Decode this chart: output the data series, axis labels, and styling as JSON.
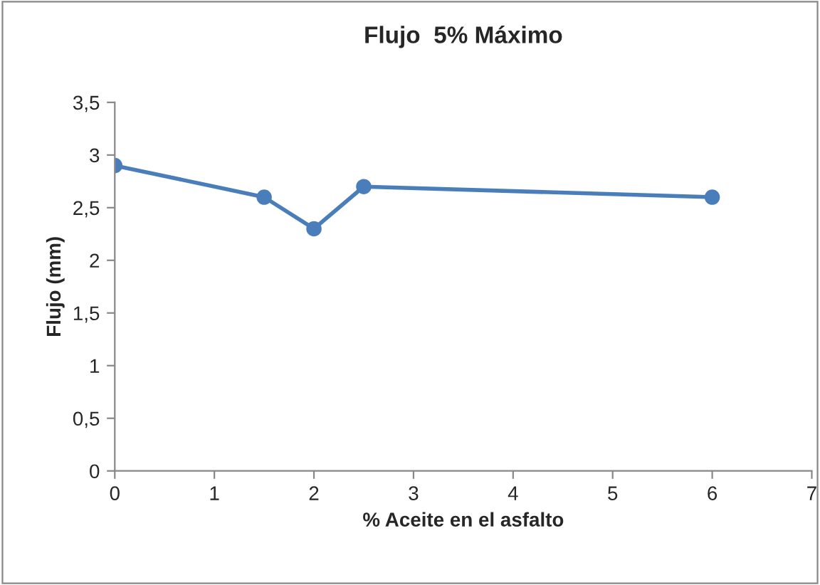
{
  "chart_data": {
    "type": "line",
    "title": "Flujo  5% Máximo",
    "xlabel": "% Aceite en el asfalto",
    "ylabel": "Flujo (mm)",
    "x": [
      0,
      1.5,
      2,
      2.5,
      6
    ],
    "series": [
      {
        "color": "#4a7ebb",
        "values": [
          2.9,
          2.6,
          2.3,
          2.7,
          2.6
        ]
      }
    ],
    "xlim": [
      0,
      7
    ],
    "xticks": [
      0,
      1,
      2,
      3,
      4,
      5,
      6,
      7
    ],
    "ylim": [
      0,
      3.5
    ],
    "yticks": [
      0,
      {
        "value": 0.5,
        "label": "0,5"
      },
      1,
      {
        "value": 1.5,
        "label": "1,5"
      },
      2,
      {
        "value": 2.5,
        "label": "2,5"
      },
      3,
      {
        "value": 3.5,
        "label": "3,5"
      }
    ],
    "grid": false,
    "legend": false,
    "marker": "circle",
    "line_style": "solid"
  }
}
